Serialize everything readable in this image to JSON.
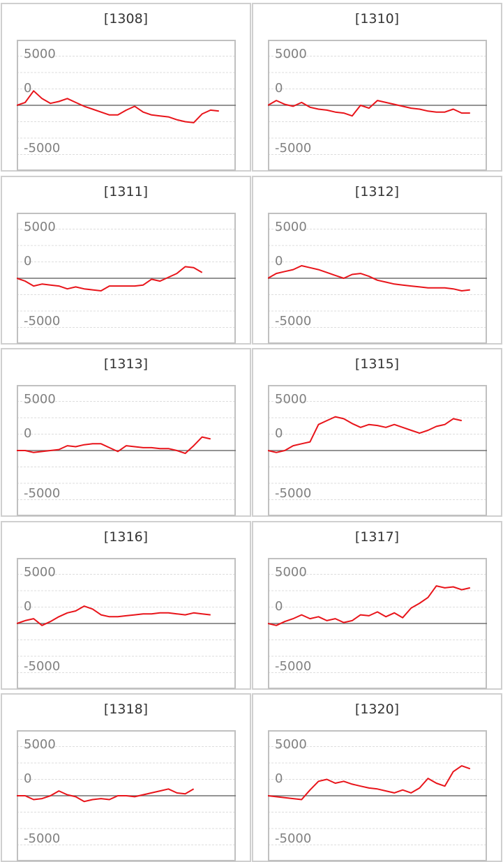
{
  "colors": {
    "line": "#e8141a",
    "zero_line": "#707070",
    "grid": "#dddddd",
    "frame": "#c0c0c0",
    "label": "#808080"
  },
  "chart_data": [
    {
      "type": "line",
      "title": "[1308]",
      "yticks": [
        "5000",
        "0",
        "-5000"
      ],
      "ylim": [
        -6800,
        6800
      ],
      "values": [
        0,
        300,
        1500,
        700,
        200,
        400,
        700,
        300,
        -100,
        -400,
        -700,
        -1000,
        -1000,
        -500,
        -100,
        -700,
        -1000,
        -1100,
        -1200,
        -1500,
        -1700,
        -1800,
        -900,
        -500,
        -600
      ]
    },
    {
      "type": "line",
      "title": "[1310]",
      "yticks": [
        "5000",
        "0",
        "-5000"
      ],
      "ylim": [
        -6800,
        6800
      ],
      "values": [
        0,
        500,
        100,
        -100,
        300,
        -200,
        -400,
        -500,
        -700,
        -800,
        -1100,
        0,
        -300,
        500,
        300,
        100,
        -100,
        -300,
        -400,
        -600,
        -700,
        -700,
        -400,
        -800,
        -800
      ]
    },
    {
      "type": "line",
      "title": "[1311]",
      "yticks": [
        "5000",
        "0",
        "-5000"
      ],
      "ylim": [
        -6800,
        6800
      ],
      "values": [
        0,
        -300,
        -800,
        -600,
        -700,
        -800,
        -1100,
        -900,
        -1100,
        -1200,
        -1300,
        -800,
        -800,
        -800,
        -800,
        -700,
        -100,
        -300,
        100,
        500,
        1200,
        1100,
        600
      ]
    },
    {
      "type": "line",
      "title": "[1312]",
      "yticks": [
        "5000",
        "0",
        "-5000"
      ],
      "ylim": [
        -6800,
        6800
      ],
      "values": [
        0,
        500,
        700,
        900,
        1300,
        1100,
        900,
        600,
        300,
        0,
        400,
        500,
        200,
        -200,
        -400,
        -600,
        -700,
        -800,
        -900,
        -1000,
        -1000,
        -1000,
        -1100,
        -1300,
        -1200
      ]
    },
    {
      "type": "line",
      "title": "[1313]",
      "yticks": [
        "5000",
        "0",
        "-5000"
      ],
      "ylim": [
        -6800,
        6800
      ],
      "values": [
        0,
        0,
        -200,
        -100,
        0,
        100,
        500,
        400,
        600,
        700,
        700,
        300,
        -100,
        500,
        400,
        300,
        300,
        200,
        200,
        0,
        -300,
        500,
        1400,
        1200
      ]
    },
    {
      "type": "line",
      "title": "[1315]",
      "yticks": [
        "5000",
        "0",
        "-5000"
      ],
      "ylim": [
        -6800,
        6800
      ],
      "values": [
        0,
        -200,
        0,
        500,
        700,
        900,
        2700,
        3100,
        3500,
        3300,
        2800,
        2400,
        2700,
        2600,
        2400,
        2700,
        2400,
        2100,
        1800,
        2100,
        2500,
        2700,
        3300,
        3100
      ]
    },
    {
      "type": "line",
      "title": "[1316]",
      "yticks": [
        "5000",
        "0",
        "-5000"
      ],
      "ylim": [
        -6800,
        6800
      ],
      "values": [
        0,
        300,
        500,
        -200,
        200,
        700,
        1100,
        1300,
        1800,
        1500,
        900,
        700,
        700,
        800,
        900,
        1000,
        1000,
        1100,
        1100,
        1000,
        900,
        1100,
        1000,
        900
      ]
    },
    {
      "type": "line",
      "title": "[1317]",
      "yticks": [
        "5000",
        "0",
        "-5000"
      ],
      "ylim": [
        -6800,
        6800
      ],
      "values": [
        0,
        -200,
        200,
        500,
        900,
        500,
        700,
        300,
        500,
        100,
        300,
        900,
        800,
        1200,
        700,
        1100,
        600,
        1600,
        2100,
        2700,
        3900,
        3700,
        3800,
        3500,
        3700
      ]
    },
    {
      "type": "line",
      "title": "[1318]",
      "yticks": [
        "5000",
        "0",
        "-5000"
      ],
      "ylim": [
        -6800,
        6800
      ],
      "values": [
        0,
        0,
        -400,
        -300,
        0,
        500,
        100,
        -100,
        -600,
        -400,
        -300,
        -400,
        0,
        0,
        -100,
        100,
        300,
        500,
        700,
        300,
        200,
        700
      ]
    },
    {
      "type": "line",
      "title": "[1320]",
      "yticks": [
        "5000",
        "0",
        "-5000"
      ],
      "ylim": [
        -6800,
        6800
      ],
      "values": [
        0,
        -100,
        -200,
        -300,
        -400,
        600,
        1500,
        1700,
        1300,
        1500,
        1200,
        1000,
        800,
        700,
        500,
        300,
        600,
        300,
        800,
        1800,
        1300,
        1000,
        2500,
        3100,
        2800
      ]
    }
  ]
}
